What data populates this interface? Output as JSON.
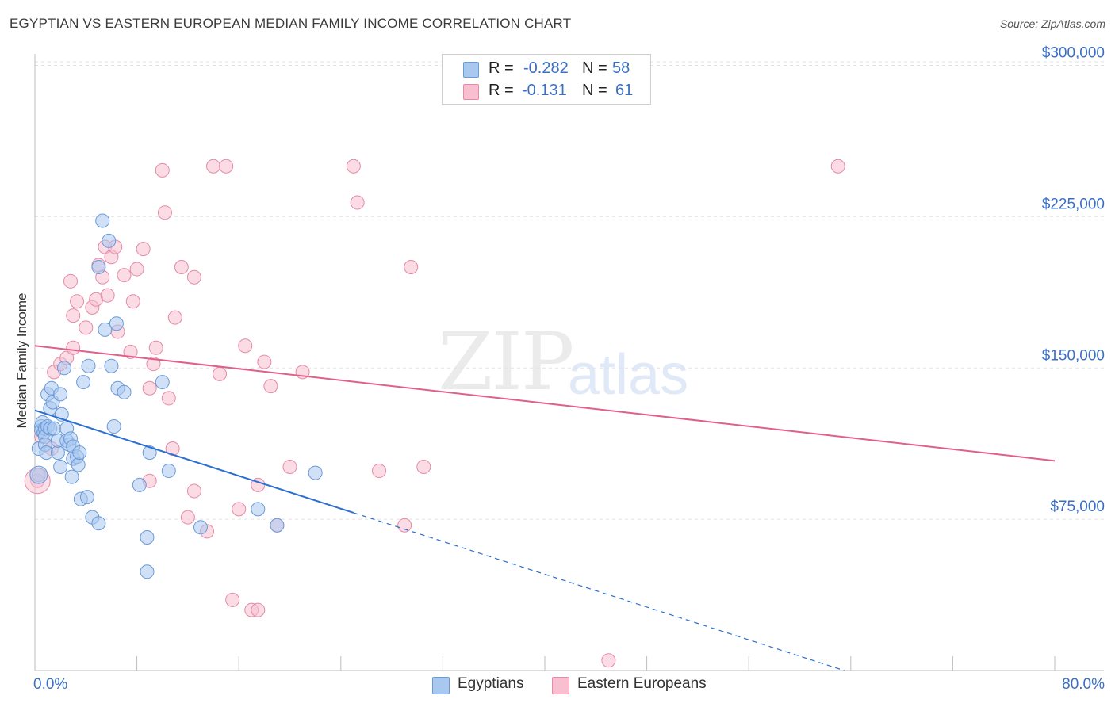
{
  "title": "EGYPTIAN VS EASTERN EUROPEAN MEDIAN FAMILY INCOME CORRELATION CHART",
  "source": "Source: ZipAtlas.com",
  "watermark": {
    "zip": "ZIP",
    "atlas": "atlas"
  },
  "legend": {
    "r_label": "R =",
    "n_label": "N =",
    "egyptians": {
      "r": "-0.282",
      "n": "58"
    },
    "eastern": {
      "r": "-0.131",
      "n": "61"
    }
  },
  "colors": {
    "blue_fill": "#a9c8f0",
    "blue_stroke": "#6a9ad8",
    "blue_line": "#2a6fd1",
    "pink_fill": "#f7bfd0",
    "pink_stroke": "#e58aa8",
    "pink_line": "#e0608a",
    "axis_label": "#3a6fc4",
    "grid": "#e2e2e2"
  },
  "chart_data": {
    "type": "scatter",
    "title": "EGYPTIAN VS EASTERN EUROPEAN MEDIAN FAMILY INCOME CORRELATION CHART",
    "xlabel": "",
    "ylabel": "Median Family Income",
    "xlim": [
      0,
      80
    ],
    "ylim": [
      0,
      315000
    ],
    "x_tick_labels": {
      "left": "0.0%",
      "right": "80.0%"
    },
    "y_ticks": [
      {
        "value": 75000,
        "label": "$75,000"
      },
      {
        "value": 150000,
        "label": "$150,000"
      },
      {
        "value": 225000,
        "label": "$225,000"
      },
      {
        "value": 300000,
        "label": "$300,000"
      }
    ],
    "series": [
      {
        "name": "Egyptians",
        "r": -0.282,
        "n": 58,
        "trend": {
          "x0": 0,
          "y0": 129000,
          "x_solid_end": 25,
          "x1": 63.5,
          "y1": 0
        },
        "points": [
          [
            0.3,
            110000
          ],
          [
            0.3,
            97000
          ],
          [
            0.5,
            121000
          ],
          [
            0.5,
            119000
          ],
          [
            0.6,
            123000
          ],
          [
            0.7,
            118000
          ],
          [
            0.8,
            120000
          ],
          [
            0.8,
            116000
          ],
          [
            0.8,
            112000
          ],
          [
            0.9,
            108000
          ],
          [
            1,
            121000
          ],
          [
            1,
            137000
          ],
          [
            1.2,
            130000
          ],
          [
            1.2,
            120000
          ],
          [
            1.3,
            140000
          ],
          [
            1.4,
            133000
          ],
          [
            1.5,
            120000
          ],
          [
            1.8,
            108000
          ],
          [
            1.8,
            114000
          ],
          [
            2,
            101000
          ],
          [
            2,
            137000
          ],
          [
            2.1,
            127000
          ],
          [
            2.3,
            150000
          ],
          [
            2.5,
            120000
          ],
          [
            2.5,
            114000
          ],
          [
            2.7,
            112000
          ],
          [
            2.8,
            115000
          ],
          [
            2.9,
            96000
          ],
          [
            3,
            105000
          ],
          [
            3,
            111000
          ],
          [
            3.3,
            106000
          ],
          [
            3.4,
            102000
          ],
          [
            3.5,
            108000
          ],
          [
            3.6,
            85000
          ],
          [
            3.8,
            143000
          ],
          [
            4.1,
            86000
          ],
          [
            4.2,
            151000
          ],
          [
            4.5,
            76000
          ],
          [
            5,
            200000
          ],
          [
            5,
            73000
          ],
          [
            5.3,
            223000
          ],
          [
            5.5,
            169000
          ],
          [
            5.8,
            213000
          ],
          [
            6,
            151000
          ],
          [
            6.2,
            121000
          ],
          [
            6.4,
            172000
          ],
          [
            6.5,
            140000
          ],
          [
            7,
            138000
          ],
          [
            8.2,
            92000
          ],
          [
            8.8,
            49000
          ],
          [
            8.8,
            66000
          ],
          [
            9,
            108000
          ],
          [
            10,
            143000
          ],
          [
            10.5,
            99000
          ],
          [
            13,
            71000
          ],
          [
            17.5,
            80000
          ],
          [
            19,
            72000
          ],
          [
            22,
            98000
          ]
        ]
      },
      {
        "name": "Eastern Europeans",
        "r": -0.131,
        "n": 61,
        "trend": {
          "x0": 0,
          "y0": 161000,
          "x1": 80,
          "y1": 104000
        },
        "points": [
          [
            0.2,
            94000
          ],
          [
            0.5,
            116000
          ],
          [
            1.3,
            110000
          ],
          [
            1.5,
            148000
          ],
          [
            2,
            152000
          ],
          [
            2.5,
            155000
          ],
          [
            2.8,
            193000
          ],
          [
            3,
            176000
          ],
          [
            3.3,
            183000
          ],
          [
            4,
            170000
          ],
          [
            4.5,
            180000
          ],
          [
            4.8,
            184000
          ],
          [
            5,
            201000
          ],
          [
            5.3,
            195000
          ],
          [
            5.5,
            210000
          ],
          [
            5.7,
            186000
          ],
          [
            6,
            205000
          ],
          [
            6.3,
            210000
          ],
          [
            6.5,
            168000
          ],
          [
            7,
            196000
          ],
          [
            7.5,
            158000
          ],
          [
            7.7,
            183000
          ],
          [
            8,
            199000
          ],
          [
            8.5,
            209000
          ],
          [
            9,
            94000
          ],
          [
            9.3,
            152000
          ],
          [
            9.5,
            160000
          ],
          [
            10,
            248000
          ],
          [
            10.2,
            227000
          ],
          [
            10.5,
            135000
          ],
          [
            10.8,
            110000
          ],
          [
            11,
            175000
          ],
          [
            11.5,
            200000
          ],
          [
            12,
            76000
          ],
          [
            12.5,
            89000
          ],
          [
            12.5,
            195000
          ],
          [
            13.5,
            69000
          ],
          [
            14,
            250000
          ],
          [
            15,
            250000
          ],
          [
            15.5,
            35000
          ],
          [
            16,
            80000
          ],
          [
            16.5,
            161000
          ],
          [
            17,
            30000
          ],
          [
            17.5,
            30000
          ],
          [
            17.5,
            92000
          ],
          [
            18,
            153000
          ],
          [
            18.5,
            141000
          ],
          [
            19,
            72000
          ],
          [
            20,
            101000
          ],
          [
            21,
            148000
          ],
          [
            25,
            250000
          ],
          [
            25.3,
            232000
          ],
          [
            27,
            99000
          ],
          [
            29,
            72000
          ],
          [
            29.5,
            200000
          ],
          [
            30.5,
            101000
          ],
          [
            45,
            5000
          ],
          [
            63,
            250000
          ],
          [
            9,
            140000
          ],
          [
            14.5,
            147000
          ],
          [
            3,
            160000
          ]
        ]
      }
    ]
  },
  "bottom_legend": {
    "egyptians": "Egyptians",
    "eastern": "Eastern Europeans"
  }
}
